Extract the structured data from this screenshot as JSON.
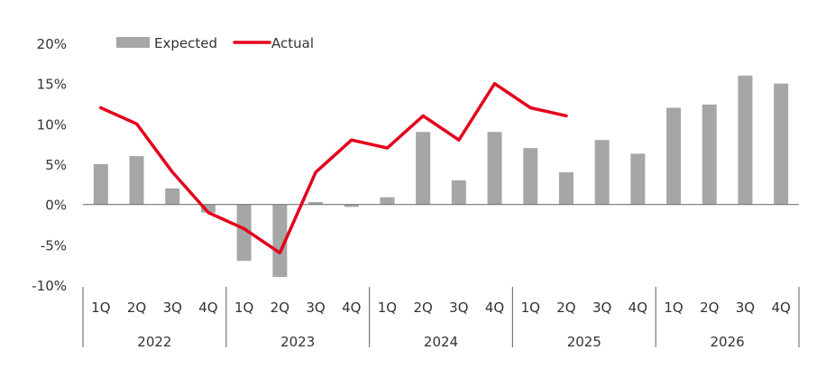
{
  "chart_data": {
    "type": "bar+line",
    "title": "",
    "xlabel": "",
    "ylabel": "",
    "ylim": [
      -10,
      20
    ],
    "yticks": [
      "20%",
      "15%",
      "10%",
      "5%",
      "0%",
      "-5%",
      "-10%"
    ],
    "ytick_values": [
      20,
      15,
      10,
      5,
      0,
      -5,
      -10
    ],
    "categories": [
      "1Q",
      "2Q",
      "3Q",
      "4Q",
      "1Q",
      "2Q",
      "3Q",
      "4Q",
      "1Q",
      "2Q",
      "3Q",
      "4Q",
      "1Q",
      "2Q",
      "3Q",
      "4Q",
      "1Q",
      "2Q",
      "3Q",
      "4Q"
    ],
    "years": [
      "2022",
      "2023",
      "2024",
      "2025",
      "2026"
    ],
    "legend_placement": "top",
    "grid": false,
    "series": [
      {
        "name": "Expected",
        "type": "bar",
        "color": "#a6a6a6",
        "values": [
          5,
          6,
          2,
          -1,
          -7,
          -9,
          0.3,
          -0.3,
          0.9,
          9,
          3,
          9,
          7,
          4,
          8,
          6.3,
          12,
          12.4,
          16,
          15
        ]
      },
      {
        "name": "Actual",
        "type": "line",
        "color": "#e4001b",
        "values": [
          12,
          10,
          4,
          -1,
          -3,
          -6,
          4,
          8,
          7,
          11,
          8,
          15,
          12,
          11,
          null,
          null,
          null,
          null,
          null,
          null
        ]
      }
    ]
  }
}
